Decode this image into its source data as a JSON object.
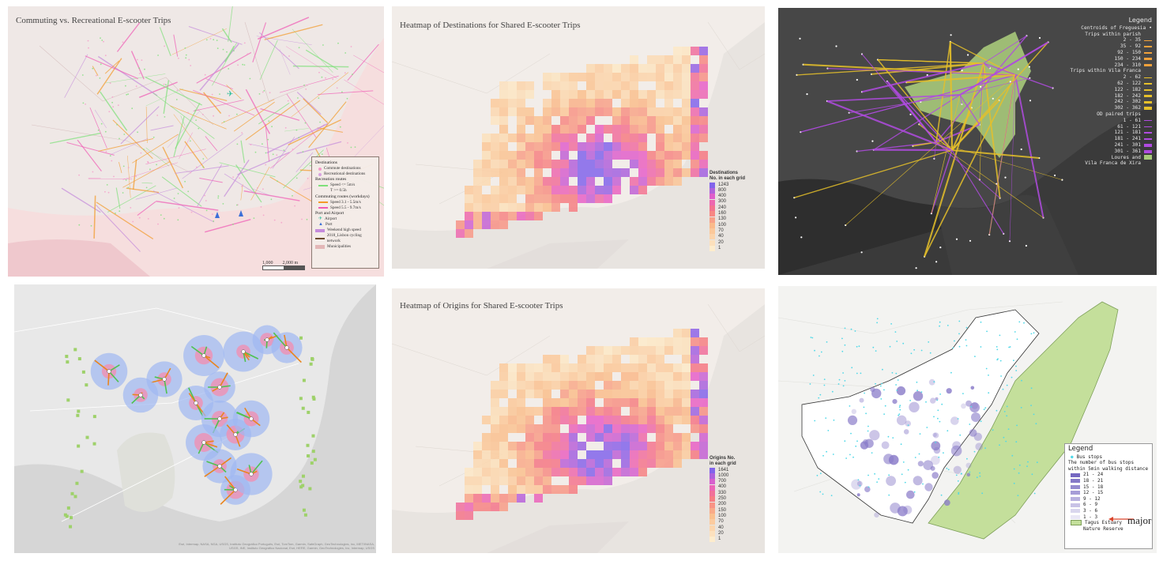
{
  "colors": {
    "commute_orange": "#f39a2a",
    "commute_pink": "#f05bb5",
    "recreation_green": "#7fe07a",
    "weekend_purple": "#c58bdc",
    "heat_low": "#fde3c0",
    "heat_mid": "#f78a8a",
    "heat_high": "#8f6cf0",
    "lisbon_green": "#a7c97a",
    "bus_cyan": "#4fd8e8"
  },
  "panel1": {
    "title": "Commuting vs. Recreational E-scooter Trips",
    "legend": {
      "destinations_header": "Destinations",
      "commute_dest": "Commute destinations",
      "rec_dest": "Recreational destinations",
      "rec_routes_header": "Recreation routes",
      "rec_speed_a": "Speed <= 5m/s",
      "rec_speed_b": "T >= 0.5h",
      "commute_header": "Commuting routes (workdays)",
      "commute_speed_a": "Speed 3.1 - 5.5m/s",
      "commute_speed_b": "Speed 5.5 - 9.7m/s",
      "port_header": "Port and Airport",
      "airport": "Airport",
      "port": "Port",
      "weekend": "Weekend high speed",
      "cycling": "2018_Lisbon cycling network",
      "municipalities": "Municipalities"
    },
    "scale_a": "1,000",
    "scale_b": "2,000 m"
  },
  "panel2": {
    "title": "Heatmap of Destinations for Shared E-scooter Trips",
    "legend_title_1": "Destinations",
    "legend_title_2": "No. in each grid",
    "breaks": [
      "1243",
      "800",
      "400",
      "300",
      "240",
      "160",
      "130",
      "100",
      "70",
      "40",
      "20",
      "1"
    ]
  },
  "panel3": {
    "legend_title": "Legend",
    "centroids": "Centroids of Freguesia",
    "within_parish": "Trips within parish",
    "parish_breaks": [
      "2 - 35",
      "35 - 92",
      "92 - 150",
      "150 - 234",
      "234 - 310"
    ],
    "within_vf": "Trips within Vila Franca",
    "vf_breaks": [
      "2 - 62",
      "62 - 122",
      "122 - 182",
      "182 - 242",
      "242 - 302",
      "302 - 362"
    ],
    "od_paired": "OD paired trips",
    "od_breaks": [
      "1 - 61",
      "61 - 121",
      "121 - 181",
      "181 - 241",
      "241 - 301",
      "301 - 361"
    ],
    "loures_1": "Loures and",
    "loures_2": "Vila Franca de Xira"
  },
  "panel4": {
    "attribution": "Esri, Intermap, NASA, NGA, USGS, Instituto Geográfico Português, Esri, TomTom, Garmin, SafeGraph, GeoTechnologies, Inc, METI/NASA, USGS, INE, Instituto Geográfico Nacional, Esri, HERE, Garmin, GeoTechnologies, Inc, Intermap, USGS"
  },
  "panel5": {
    "title": "Heatmap of Origins for Shared E-scooter Trips",
    "legend_title_1": "Origins No.",
    "legend_title_2": "in each grid",
    "breaks": [
      "1641",
      "1000",
      "700",
      "400",
      "330",
      "250",
      "200",
      "150",
      "100",
      "70",
      "40",
      "20",
      "1"
    ]
  },
  "panel6": {
    "legend_title": "Legend",
    "bus_stops": "Bus stops",
    "desc_1": "The number of bus stops",
    "desc_2": "within 5min walking distance",
    "breaks": [
      "21 - 24",
      "18 - 21",
      "15 - 18",
      "12 - 15",
      "9 - 12",
      "6 - 9",
      "3 - 6",
      "1 - 3"
    ],
    "tagus_1": "Tagus Estuary",
    "tagus_2": "Nature Reserve",
    "annotation": "major"
  }
}
